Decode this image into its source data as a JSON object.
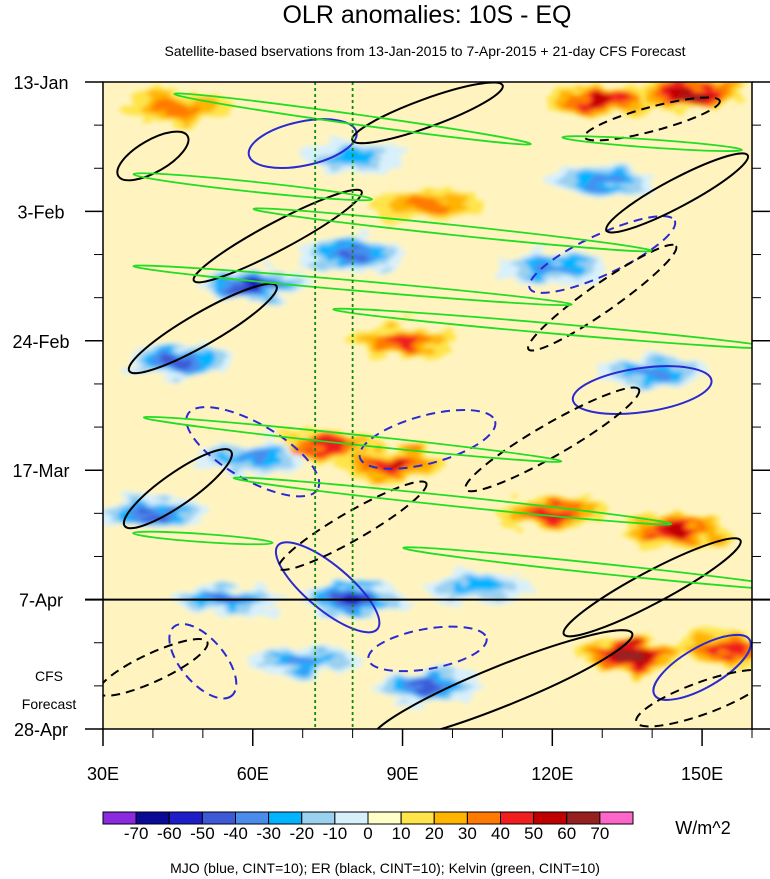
{
  "title": "OLR anomalies: 10S - EQ",
  "subtitle": "Satellite-based bservations from 13-Jan-2015 to 7-Apr-2015 + 21-day CFS Forecast",
  "forecast_label": [
    "CFS",
    "Forecast"
  ],
  "colorbar": {
    "unit": "W/m^2",
    "tick_labels": [
      "-70",
      "-60",
      "-50",
      "-40",
      "-30",
      "-20",
      "-10",
      "0",
      "10",
      "20",
      "30",
      "40",
      "50",
      "60",
      "70"
    ],
    "colors": [
      "#8a2be2",
      "#0a0a96",
      "#1e1ec8",
      "#3c5ad7",
      "#4a8cec",
      "#00b4ff",
      "#9ad0f0",
      "#d8f0fc",
      "#ffffc8",
      "#ffe44a",
      "#ffb400",
      "#ff7a00",
      "#f01e1e",
      "#c00000",
      "#962020",
      "#ff66cc"
    ]
  },
  "footer": "MJO (blue, CINT=10); ER (black, CINT=10); Kelvin (green, CINT=10)",
  "chart_data": {
    "type": "heatmap",
    "title": "OLR anomalies: 10S - EQ",
    "x_axis": {
      "range": [
        "30E",
        "160E"
      ],
      "tick_labels": [
        "30E",
        "60E",
        "90E",
        "120E",
        "150E"
      ],
      "tick_values": [
        30,
        60,
        90,
        120,
        150
      ]
    },
    "y_axis": {
      "range": [
        "13-Jan",
        "28-Apr"
      ],
      "tick_labels": [
        "13-Jan",
        "3-Feb",
        "24-Feb",
        "17-Mar",
        "7-Apr",
        "28-Apr"
      ],
      "tick_days": [
        0,
        21,
        42,
        63,
        84,
        105
      ]
    },
    "observation_end": "7-Apr",
    "reference_lines_lon": [
      72.5,
      80
    ],
    "contour_sets": [
      "MJO (blue)",
      "ER (black)",
      "Kelvin (green)"
    ],
    "anomaly_features": [
      {
        "lon": 130,
        "day": 3,
        "value": 50
      },
      {
        "lon": 148,
        "day": 2,
        "value": 60
      },
      {
        "lon": 45,
        "day": 4,
        "value": 30
      },
      {
        "lon": 80,
        "day": 12,
        "value": -30
      },
      {
        "lon": 130,
        "day": 16,
        "value": -40
      },
      {
        "lon": 95,
        "day": 20,
        "value": 30
      },
      {
        "lon": 80,
        "day": 28,
        "value": -50
      },
      {
        "lon": 60,
        "day": 33,
        "value": -60
      },
      {
        "lon": 120,
        "day": 30,
        "value": -40
      },
      {
        "lon": 45,
        "day": 45,
        "value": -50
      },
      {
        "lon": 90,
        "day": 42,
        "value": 40
      },
      {
        "lon": 140,
        "day": 47,
        "value": -40
      },
      {
        "lon": 75,
        "day": 59,
        "value": 40
      },
      {
        "lon": 88,
        "day": 62,
        "value": 50
      },
      {
        "lon": 60,
        "day": 61,
        "value": -40
      },
      {
        "lon": 40,
        "day": 70,
        "value": -50
      },
      {
        "lon": 120,
        "day": 70,
        "value": 40
      },
      {
        "lon": 145,
        "day": 73,
        "value": 50
      },
      {
        "lon": 80,
        "day": 84,
        "value": -60
      },
      {
        "lon": 55,
        "day": 84,
        "value": -50
      },
      {
        "lon": 105,
        "day": 82,
        "value": -30
      },
      {
        "lon": 135,
        "day": 93,
        "value": 60
      },
      {
        "lon": 70,
        "day": 94,
        "value": -40
      },
      {
        "lon": 95,
        "day": 98,
        "value": -50
      },
      {
        "lon": 155,
        "day": 92,
        "value": 40
      }
    ]
  }
}
